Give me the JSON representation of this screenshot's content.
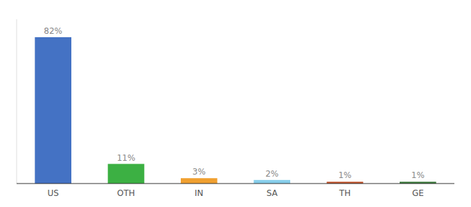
{
  "chart_data": {
    "type": "bar",
    "categories": [
      "US",
      "OTH",
      "IN",
      "SA",
      "TH",
      "GE"
    ],
    "values": [
      82,
      11,
      3,
      2,
      1,
      1
    ],
    "value_labels": [
      "82%",
      "11%",
      "3%",
      "2%",
      "1%",
      "1%"
    ],
    "colors": [
      "#4472c4",
      "#3cb043",
      "#f0a030",
      "#87ceeb",
      "#c0522a",
      "#3a7a3a"
    ],
    "ylim": [
      0,
      92
    ],
    "data_labels": true,
    "tick_labels": "x"
  }
}
